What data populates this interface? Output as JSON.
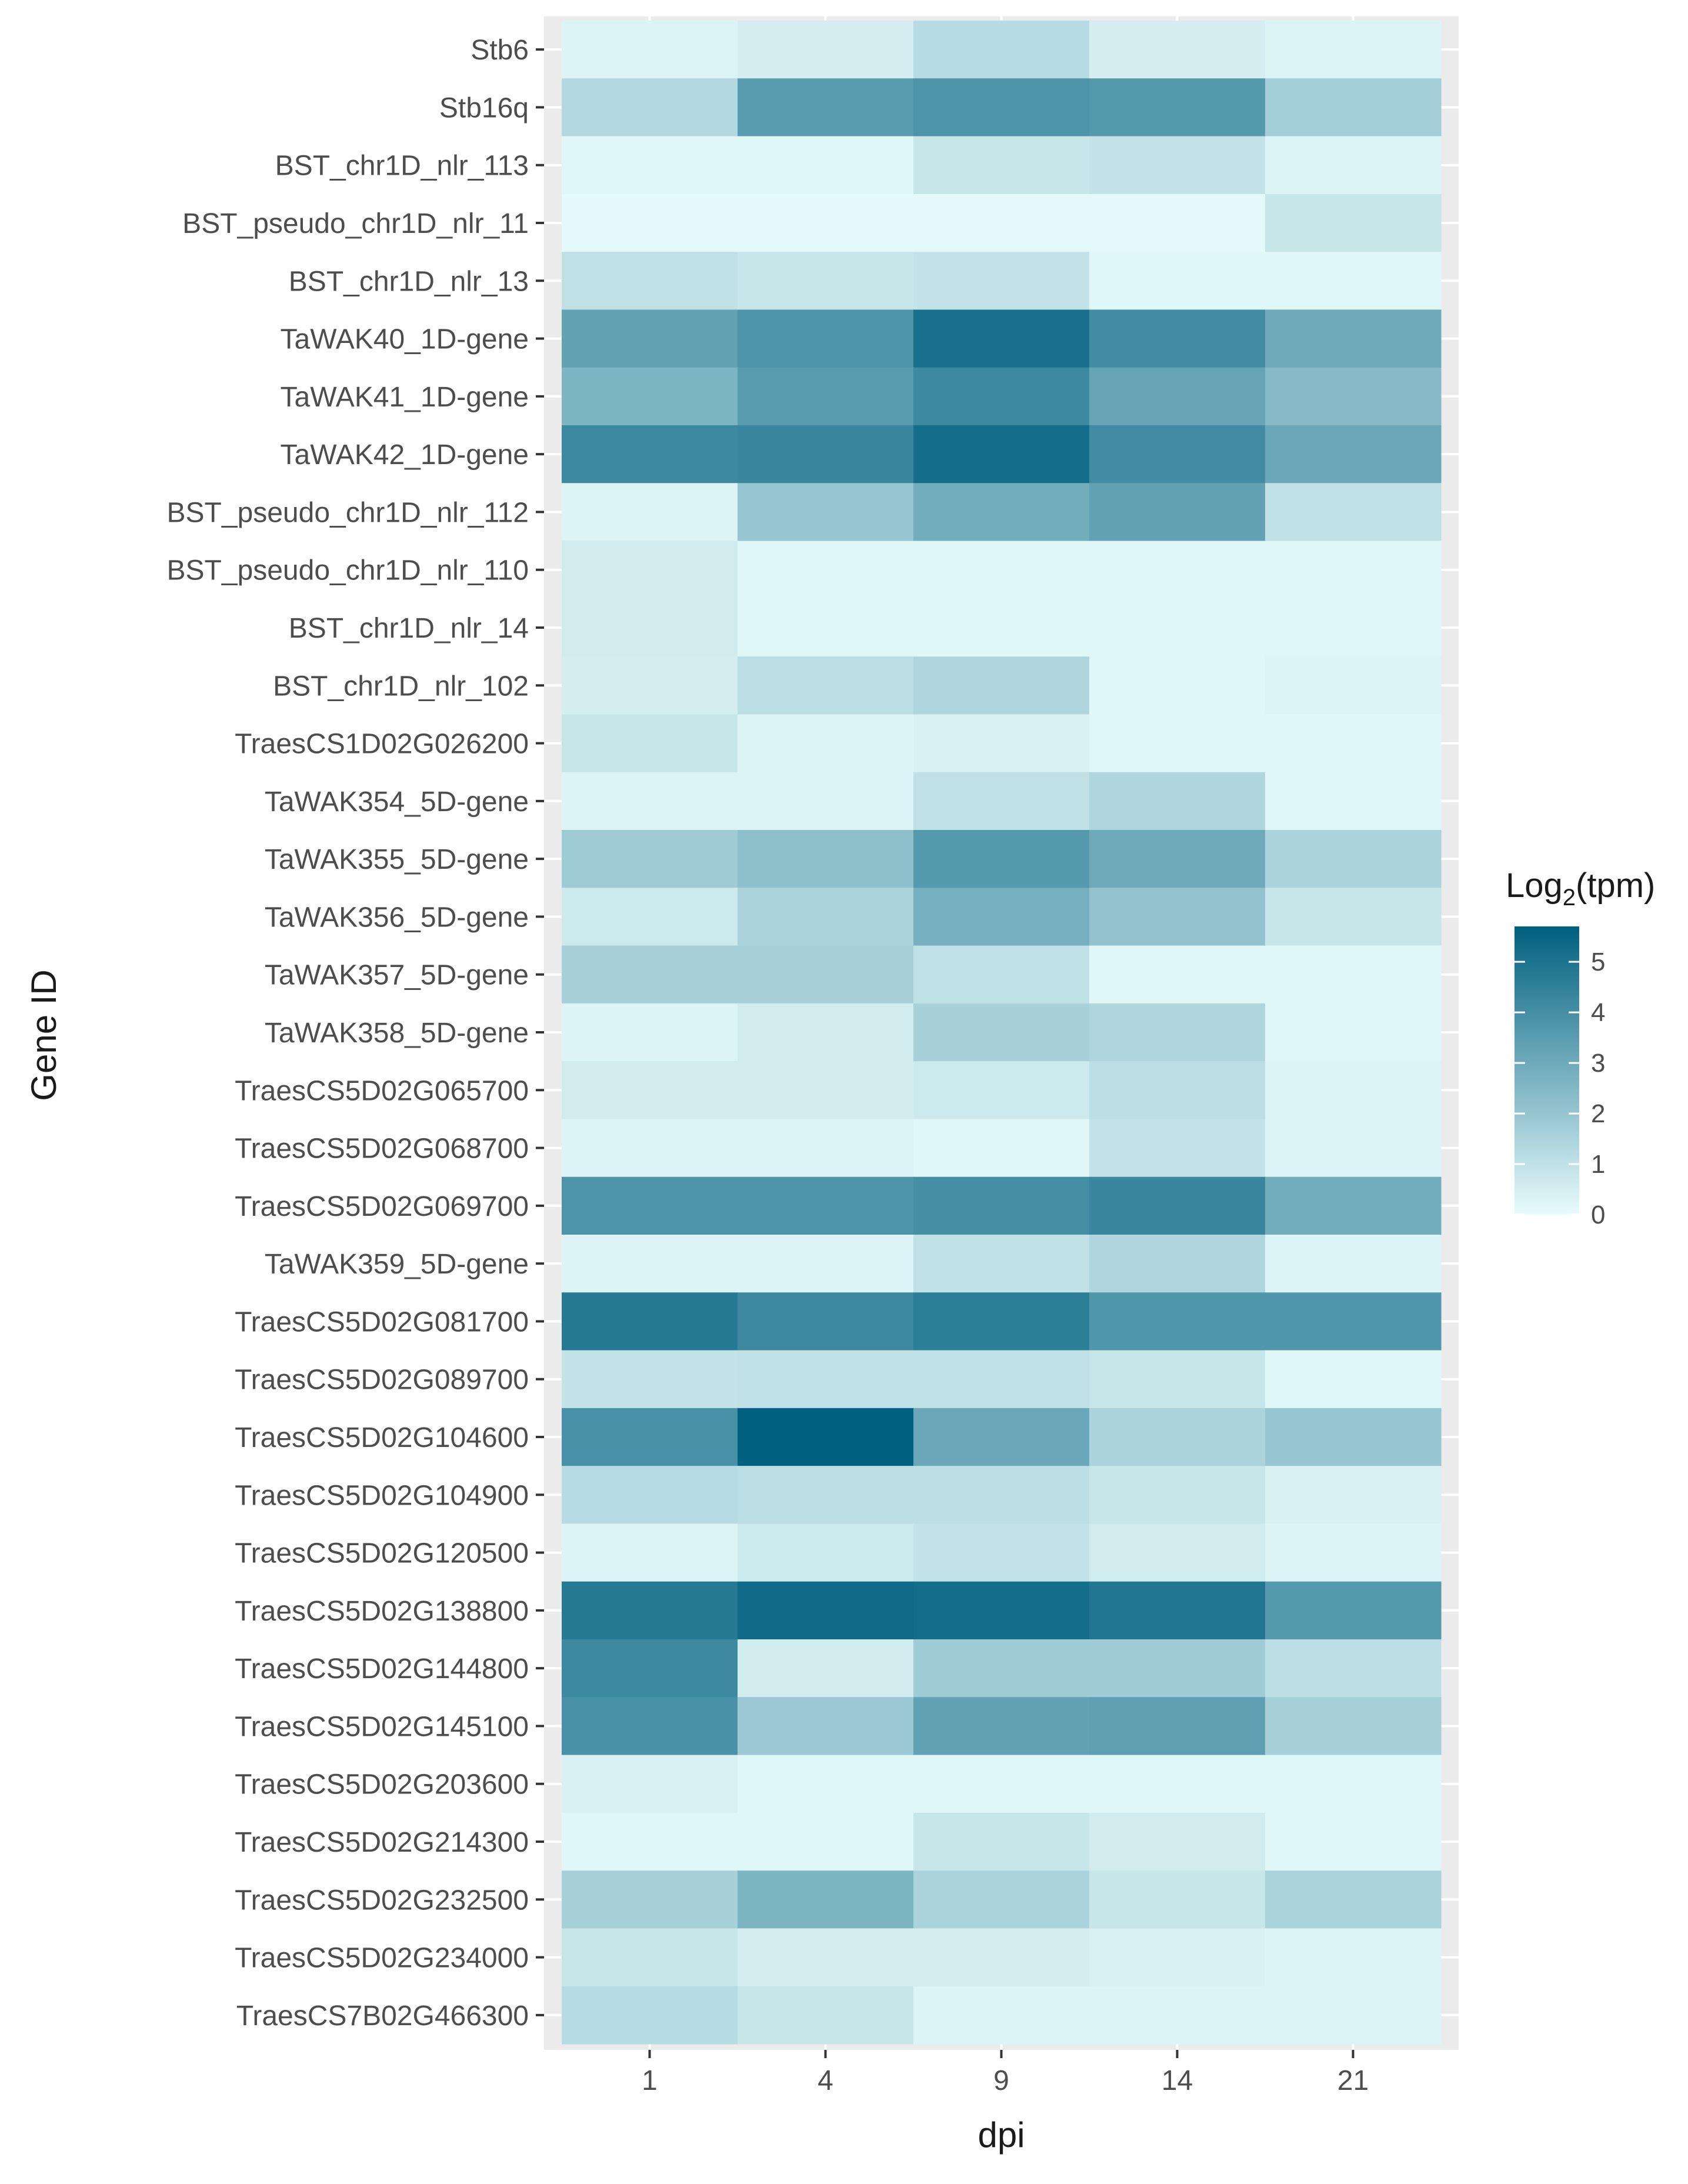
{
  "chart_data": {
    "type": "heatmap",
    "title": "",
    "xlabel": "dpi",
    "ylabel": "Gene ID",
    "x_categories": [
      "1",
      "4",
      "9",
      "14",
      "21"
    ],
    "y_categories": [
      "Stb6",
      "Stb16q",
      "BST_chr1D_nlr_113",
      "BST_pseudo_chr1D_nlr_11",
      "BST_chr1D_nlr_13",
      "TaWAK40_1D-gene",
      "TaWAK41_1D-gene",
      "TaWAK42_1D-gene",
      "BST_pseudo_chr1D_nlr_112",
      "BST_pseudo_chr1D_nlr_110",
      "BST_chr1D_nlr_14",
      "BST_chr1D_nlr_102",
      "TraesCS1D02G026200",
      "TaWAK354_5D-gene",
      "TaWAK355_5D-gene",
      "TaWAK356_5D-gene",
      "TaWAK357_5D-gene",
      "TaWAK358_5D-gene",
      "TraesCS5D02G065700",
      "TraesCS5D02G068700",
      "TraesCS5D02G069700",
      "TaWAK359_5D-gene",
      "TraesCS5D02G081700",
      "TraesCS5D02G089700",
      "TraesCS5D02G104600",
      "TraesCS5D02G104900",
      "TraesCS5D02G120500",
      "TraesCS5D02G138800",
      "TraesCS5D02G144800",
      "TraesCS5D02G145100",
      "TraesCS5D02G203600",
      "TraesCS5D02G214300",
      "TraesCS5D02G232500",
      "TraesCS5D02G234000",
      "TraesCS7B02G466300"
    ],
    "values": [
      [
        0.3,
        0.5,
        1.2,
        0.5,
        0.3
      ],
      [
        1.3,
        3.5,
        3.8,
        3.6,
        1.7
      ],
      [
        0.2,
        0.2,
        0.8,
        0.9,
        0.3
      ],
      [
        0.1,
        0.1,
        0.1,
        0.1,
        0.8
      ],
      [
        1.0,
        0.8,
        0.9,
        0.2,
        0.2
      ],
      [
        3.3,
        3.8,
        5.1,
        4.1,
        3.0
      ],
      [
        2.6,
        3.5,
        4.2,
        3.2,
        2.4
      ],
      [
        4.2,
        4.3,
        5.2,
        4.1,
        3.1
      ],
      [
        0.3,
        2.0,
        2.9,
        3.3,
        1.0
      ],
      [
        0.6,
        0.2,
        0.2,
        0.2,
        0.2
      ],
      [
        0.6,
        0.2,
        0.2,
        0.2,
        0.2
      ],
      [
        0.5,
        1.1,
        1.4,
        0.2,
        0.3
      ],
      [
        0.8,
        0.3,
        0.4,
        0.2,
        0.2
      ],
      [
        0.3,
        0.3,
        1.0,
        1.4,
        0.2
      ],
      [
        1.8,
        2.2,
        3.6,
        3.0,
        1.5
      ],
      [
        0.7,
        1.5,
        2.8,
        2.1,
        0.8
      ],
      [
        1.6,
        1.6,
        1.0,
        0.2,
        0.2
      ],
      [
        0.3,
        0.6,
        1.6,
        1.4,
        0.2
      ],
      [
        0.6,
        0.6,
        0.7,
        1.1,
        0.3
      ],
      [
        0.3,
        0.3,
        0.2,
        0.9,
        0.3
      ],
      [
        3.8,
        3.8,
        4.0,
        4.3,
        2.9
      ],
      [
        0.3,
        0.3,
        1.0,
        1.4,
        0.3
      ],
      [
        4.8,
        4.2,
        4.6,
        3.7,
        3.7
      ],
      [
        0.9,
        1.0,
        1.0,
        0.8,
        0.2
      ],
      [
        3.9,
        5.7,
        3.1,
        1.5,
        2.0
      ],
      [
        1.2,
        1.1,
        1.1,
        0.8,
        0.4
      ],
      [
        0.3,
        0.7,
        0.9,
        0.6,
        0.3
      ],
      [
        4.8,
        5.3,
        5.2,
        4.9,
        3.6
      ],
      [
        4.2,
        0.6,
        1.8,
        1.8,
        1.1
      ],
      [
        3.9,
        1.9,
        3.3,
        3.4,
        1.6
      ],
      [
        0.4,
        0.2,
        0.2,
        0.2,
        0.2
      ],
      [
        0.2,
        0.2,
        0.8,
        0.6,
        0.2
      ],
      [
        1.6,
        2.6,
        1.5,
        0.8,
        1.5
      ],
      [
        0.8,
        0.5,
        0.5,
        0.4,
        0.3
      ],
      [
        1.2,
        0.8,
        0.3,
        0.3,
        0.3
      ]
    ],
    "color_scale": {
      "low": "#e8fcfc",
      "high": "#00607f",
      "range": [
        0,
        5.7
      ]
    },
    "legend": {
      "title_prefix": "Log",
      "title_subscript": "2",
      "title_suffix": "(tpm)",
      "ticks": [
        0,
        1,
        2,
        3,
        4,
        5
      ],
      "tick_labels": [
        "0",
        "1",
        "2",
        "3",
        "4",
        "5"
      ],
      "position": "right"
    },
    "panel_background": "#ebebeb",
    "grid": true
  }
}
